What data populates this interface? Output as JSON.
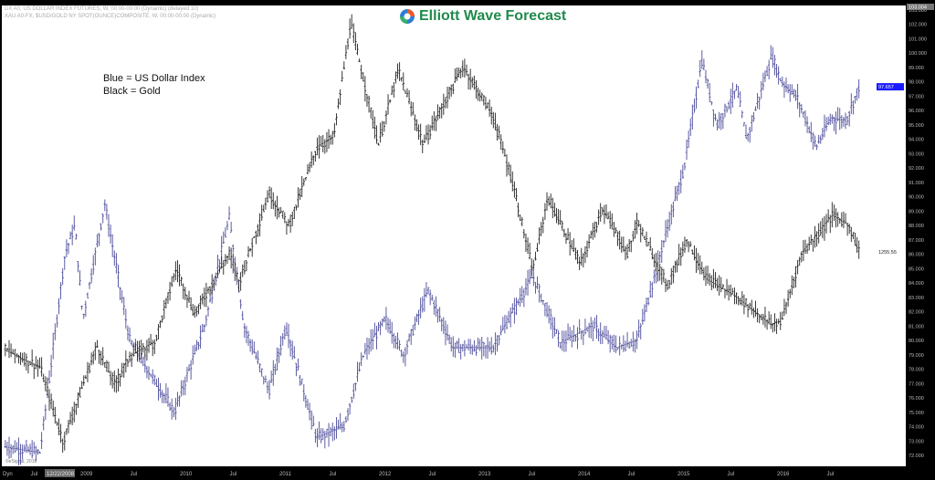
{
  "header": {
    "line1": "DX A0, US DOLLAR INDEX FUTURES, W, 00:00-00:00 (Dynamic) (delayed 10)",
    "line2": "XAU A0-FX, $USD/GOLD NY SPOT(OUNCE)COMPOSITE, W, 00:00-00:00 (Dynamic)"
  },
  "logo": {
    "text": "Elliott Wave Forecast"
  },
  "legend": {
    "blue": "Blue = US Dollar Index",
    "black": "Black = Gold"
  },
  "credit": "©eSignal, 2016",
  "axis_bottom": {
    "dyn_label": "Dyn",
    "cursor_date": "12/22/2008"
  },
  "colors": {
    "dollar": "#4a4a9a",
    "gold": "#222222",
    "price_tag": "#1a1aff"
  },
  "chart_data": {
    "type": "ohlc-bar-overlay",
    "title": "US Dollar Index vs Gold (weekly)",
    "x_ticks": [
      {
        "t": 2008.5,
        "label": "Jul"
      },
      {
        "t": 2009.0,
        "label": "2009"
      },
      {
        "t": 2009.5,
        "label": "Jul"
      },
      {
        "t": 2010.0,
        "label": "2010"
      },
      {
        "t": 2010.5,
        "label": "Jul"
      },
      {
        "t": 2011.0,
        "label": "2011"
      },
      {
        "t": 2011.5,
        "label": "Jul"
      },
      {
        "t": 2012.0,
        "label": "2012"
      },
      {
        "t": 2012.5,
        "label": "Jul"
      },
      {
        "t": 2013.0,
        "label": "2013"
      },
      {
        "t": 2013.5,
        "label": "Jul"
      },
      {
        "t": 2014.0,
        "label": "2014"
      },
      {
        "t": 2014.5,
        "label": "Jul"
      },
      {
        "t": 2015.0,
        "label": "2015"
      },
      {
        "t": 2015.5,
        "label": "Jul"
      },
      {
        "t": 2016.0,
        "label": "2016"
      },
      {
        "t": 2016.5,
        "label": "Jul"
      }
    ],
    "y_ticks": [
      103,
      102,
      101,
      100,
      99,
      98,
      97,
      96,
      95,
      94,
      93,
      92,
      91,
      90,
      89,
      88,
      87,
      86,
      85,
      84,
      83,
      82,
      81,
      80,
      79,
      78,
      77,
      76,
      75,
      74,
      73,
      72
    ],
    "ylim": [
      72,
      103
    ],
    "y_top_label": "103.004",
    "last_labels": {
      "dollar": "97.657",
      "gold": "1255.55"
    },
    "series": [
      {
        "name": "US Dollar Index",
        "color": "#4a4a9a",
        "points": [
          [
            2008.2,
            72.6
          ],
          [
            2008.55,
            72.2
          ],
          [
            2008.8,
            86
          ],
          [
            2008.9,
            88
          ],
          [
            2008.98,
            81.5
          ],
          [
            2009.2,
            89.5
          ],
          [
            2009.45,
            80
          ],
          [
            2009.9,
            75
          ],
          [
            2010.2,
            81
          ],
          [
            2010.45,
            88.5
          ],
          [
            2010.6,
            81
          ],
          [
            2010.85,
            76.5
          ],
          [
            2011.02,
            81
          ],
          [
            2011.33,
            73.2
          ],
          [
            2011.6,
            74
          ],
          [
            2011.8,
            79
          ],
          [
            2012.02,
            81.5
          ],
          [
            2012.2,
            79
          ],
          [
            2012.45,
            83.5
          ],
          [
            2012.7,
            79.5
          ],
          [
            2013.1,
            79.5
          ],
          [
            2013.5,
            84.5
          ],
          [
            2013.78,
            79.8
          ],
          [
            2014.1,
            81
          ],
          [
            2014.35,
            79.5
          ],
          [
            2014.55,
            80
          ],
          [
            2014.8,
            86.5
          ],
          [
            2015.02,
            92
          ],
          [
            2015.2,
            99.5
          ],
          [
            2015.35,
            95
          ],
          [
            2015.55,
            97.5
          ],
          [
            2015.65,
            94
          ],
          [
            2015.9,
            99.8
          ],
          [
            2016.0,
            98
          ],
          [
            2016.15,
            97
          ],
          [
            2016.35,
            93.5
          ],
          [
            2016.5,
            95.5
          ],
          [
            2016.65,
            95.3
          ],
          [
            2016.78,
            97.7
          ]
        ]
      },
      {
        "name": "Gold",
        "color": "#222222",
        "unit": "USD/oz",
        "points": [
          [
            2008.2,
            980
          ],
          [
            2008.55,
            930
          ],
          [
            2008.78,
            720
          ],
          [
            2009.12,
            990
          ],
          [
            2009.3,
            880
          ],
          [
            2009.45,
            960
          ],
          [
            2009.7,
            1000
          ],
          [
            2009.92,
            1210
          ],
          [
            2010.1,
            1080
          ],
          [
            2010.45,
            1250
          ],
          [
            2010.55,
            1170
          ],
          [
            2010.85,
            1420
          ],
          [
            2011.05,
            1330
          ],
          [
            2011.33,
            1550
          ],
          [
            2011.5,
            1580
          ],
          [
            2011.67,
            1900
          ],
          [
            2011.95,
            1560
          ],
          [
            2012.15,
            1770
          ],
          [
            2012.4,
            1560
          ],
          [
            2012.8,
            1780
          ],
          [
            2013.1,
            1640
          ],
          [
            2013.3,
            1450
          ],
          [
            2013.5,
            1200
          ],
          [
            2013.65,
            1410
          ],
          [
            2013.98,
            1220
          ],
          [
            2014.2,
            1380
          ],
          [
            2014.45,
            1250
          ],
          [
            2014.55,
            1340
          ],
          [
            2014.85,
            1160
          ],
          [
            2015.05,
            1290
          ],
          [
            2015.25,
            1180
          ],
          [
            2015.55,
            1130
          ],
          [
            2015.9,
            1050
          ],
          [
            2016.0,
            1060
          ],
          [
            2016.2,
            1250
          ],
          [
            2016.52,
            1360
          ],
          [
            2016.68,
            1330
          ],
          [
            2016.78,
            1255.55
          ]
        ]
      }
    ]
  }
}
